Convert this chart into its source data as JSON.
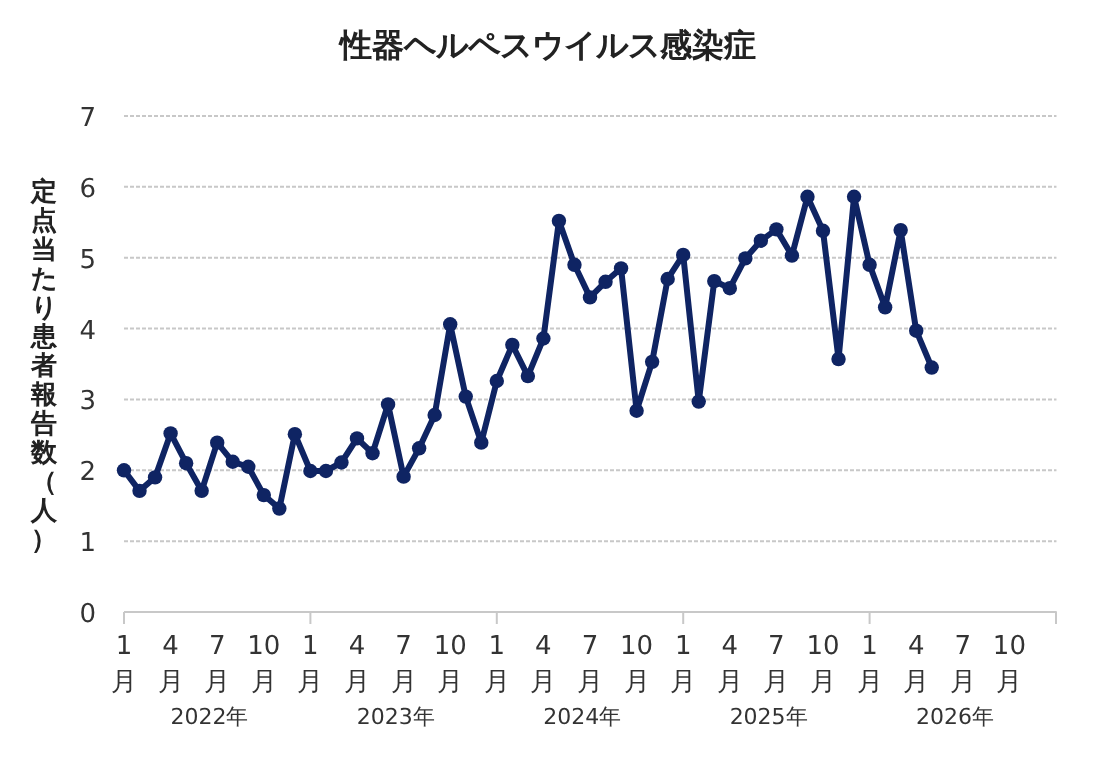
{
  "chart_data": {
    "type": "line",
    "title": "性器ヘルペスウイルス感染症",
    "ylabel": "定点当たり患者報告数（人）",
    "categories": [
      "1月",
      null,
      null,
      "4月",
      null,
      null,
      "7月",
      null,
      null,
      "10月",
      null,
      null,
      "1月",
      null,
      null,
      "4月",
      null,
      null,
      "7月",
      null,
      null,
      "10月",
      null,
      null,
      "1月",
      null,
      null,
      "4月",
      null,
      null,
      "7月",
      null,
      null,
      "10月",
      null,
      null,
      "1月",
      null,
      null,
      "4月",
      null,
      null,
      "7月",
      null,
      null,
      "10月",
      null,
      null,
      "1月",
      null,
      null,
      "4月",
      null,
      null,
      "7月",
      null,
      null,
      "10月",
      null,
      null
    ],
    "series": [
      {
        "color": "#0f2463",
        "values": [
          2.0,
          1.71,
          1.9,
          2.52,
          2.1,
          1.71,
          2.39,
          2.12,
          2.05,
          1.65,
          1.46,
          2.51,
          1.99,
          1.99,
          2.11,
          2.45,
          2.24,
          2.93,
          1.91,
          2.31,
          2.78,
          4.06,
          3.04,
          2.39,
          3.26,
          3.77,
          3.33,
          3.86,
          5.52,
          4.9,
          4.44,
          4.66,
          4.85,
          2.84,
          3.53,
          4.7,
          5.04,
          2.97,
          4.67,
          4.57,
          4.99,
          5.24,
          5.4,
          5.03,
          5.86,
          5.38,
          3.57,
          5.86,
          4.9,
          4.3,
          5.39,
          3.97,
          3.45,
          null,
          null,
          null,
          null,
          null,
          null,
          null
        ]
      }
    ],
    "ylim": [
      0,
      7
    ],
    "yticks": [
      0,
      1,
      2,
      3,
      4,
      5,
      6,
      7
    ],
    "grid": "y",
    "marker": "circle",
    "line_style": "solid",
    "annotations": [
      "2022年",
      "2023年",
      "2024年",
      "2025年",
      "2026年"
    ]
  }
}
